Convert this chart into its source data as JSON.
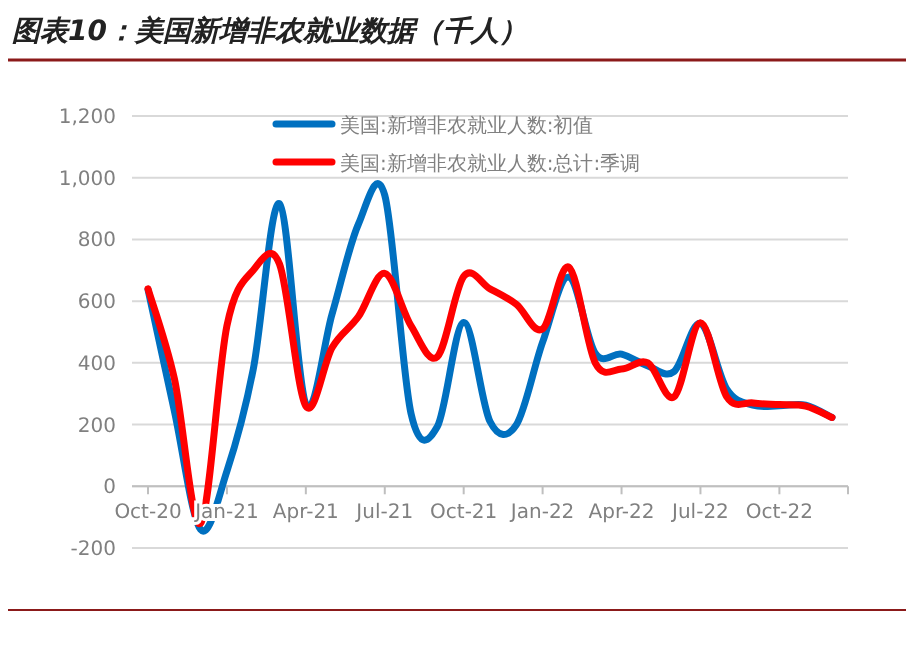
{
  "chart_data": {
    "type": "line",
    "title": "图表10：美国新增非农就业数据（千人）",
    "categories": [
      "Oct-20",
      null,
      null,
      "Jan-21",
      null,
      null,
      "Apr-21",
      null,
      null,
      "Jul-21",
      null,
      null,
      "Oct-21",
      null,
      null,
      "Jan-22",
      null,
      null,
      "Apr-22",
      null,
      null,
      "Jul-22",
      null,
      null,
      "Oct-22",
      null,
      null
    ],
    "series": [
      {
        "name": "美国:新增非农就业人数:初值",
        "color": "#0070c0",
        "values": [
          638,
          245,
          -140,
          49,
          379,
          916,
          266,
          559,
          850,
          943,
          235,
          194,
          531,
          210,
          199,
          467,
          678,
          431,
          428,
          390,
          372,
          528,
          315,
          263,
          261,
          263,
          223
        ]
      },
      {
        "name": "美国:新增非农就业人数:总计:季调",
        "color": "#ff0000",
        "values": [
          640,
          350,
          -120,
          520,
          700,
          720,
          260,
          450,
          550,
          690,
          520,
          420,
          680,
          640,
          590,
          510,
          710,
          400,
          380,
          400,
          290,
          530,
          290,
          270,
          265,
          260,
          223
        ]
      }
    ],
    "ylim": [
      -200,
      1200
    ],
    "yticks": [
      {
        "value": -200,
        "label": "-200"
      },
      {
        "value": 0,
        "label": "0"
      },
      {
        "value": 200,
        "label": "200"
      },
      {
        "value": 400,
        "label": "400"
      },
      {
        "value": 600,
        "label": "600"
      },
      {
        "value": 800,
        "label": "800"
      },
      {
        "value": 1000,
        "label": "1,000"
      },
      {
        "value": 1200,
        "label": "1,200"
      }
    ],
    "grid": "y",
    "legend": "top",
    "line_style": "solid",
    "marker": "none"
  }
}
